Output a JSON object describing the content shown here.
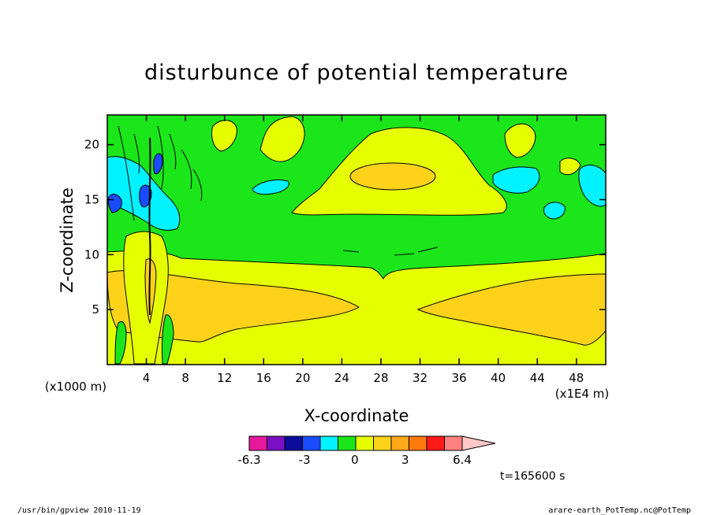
{
  "chart_data": {
    "type": "heatmap",
    "subtype": "filled-contour",
    "title": "disturbunce of potential temperature",
    "xlabel": "X-coordinate",
    "ylabel": "Z-coordinate",
    "x_unit_label": "(x1E4 m)",
    "y_unit_label": "(x1000 m)",
    "x_range": [
      0,
      51
    ],
    "y_range": [
      0,
      22.7
    ],
    "x_ticks": [
      4,
      8,
      12,
      16,
      20,
      24,
      28,
      32,
      36,
      40,
      44,
      48
    ],
    "y_ticks": [
      5,
      10,
      15,
      20
    ],
    "colorbar": {
      "tick_labels": [
        "-6.3",
        "-3",
        "0",
        "3",
        "6.4"
      ],
      "tick_values": [
        -6.3,
        -3,
        0,
        3,
        6.4
      ],
      "levels": [
        -6.3,
        -5.2,
        -4.1,
        -3.0,
        -1.9,
        -0.8,
        0.3,
        1.4,
        2.5,
        3.6,
        4.7,
        5.8,
        6.4
      ],
      "colors": [
        "#e6199c",
        "#7a0fc4",
        "#0d0d9c",
        "#1a4cff",
        "#00f2ff",
        "#1ae61a",
        "#e6ff00",
        "#ffd21a",
        "#ffa81a",
        "#ff7a0d",
        "#ff1a1a",
        "#ff8080",
        "#ffc8c8"
      ]
    },
    "time_label": "t=165600 s",
    "regions": [
      {
        "name": "background-lower",
        "level": "0",
        "color": "#e6ff00"
      },
      {
        "name": "background-upper",
        "level": "0",
        "color": "#1ae61a"
      },
      {
        "name": "warm-anomaly-left",
        "level": "1.4",
        "color": "#ffd21a"
      },
      {
        "name": "warm-anomaly-right",
        "level": "1.4",
        "color": "#ffd21a"
      },
      {
        "name": "upper-dome",
        "level": "0.3",
        "color": "#e6ff00"
      },
      {
        "name": "upper-dome-core",
        "level": "1.4",
        "color": "#ffd21a"
      },
      {
        "name": "cold-patches",
        "level": "-0.8",
        "color": "#00f2ff"
      }
    ]
  },
  "footer": {
    "left": "/usr/bin/gpview   2010-11-19",
    "right": "arare-earth_PotTemp.nc@PotTemp"
  }
}
